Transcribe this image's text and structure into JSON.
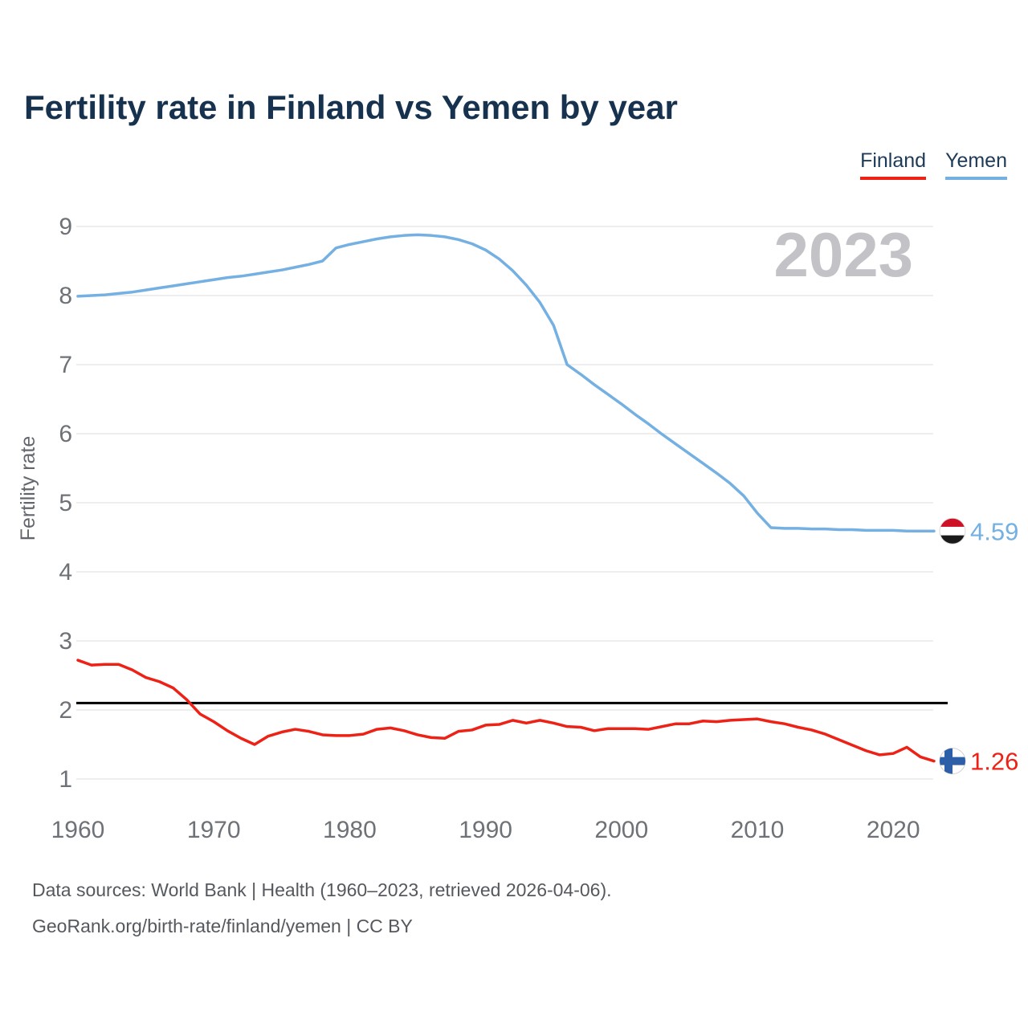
{
  "title": "Fertility rate in Finland vs Yemen by year",
  "watermark": "2023",
  "legend": [
    {
      "label": "Finland",
      "color": "#ed2115"
    },
    {
      "label": "Yemen",
      "color": "#74b0e2"
    }
  ],
  "y_axis": {
    "label": "Fertility rate",
    "ticks": [
      1,
      2,
      3,
      4,
      5,
      6,
      7,
      8,
      9
    ]
  },
  "x_axis": {
    "ticks": [
      1960,
      1970,
      1980,
      1990,
      2000,
      2010,
      2020
    ]
  },
  "chart_data": {
    "type": "line",
    "x": [
      1960,
      1961,
      1962,
      1963,
      1964,
      1965,
      1966,
      1967,
      1968,
      1969,
      1970,
      1971,
      1972,
      1973,
      1974,
      1975,
      1976,
      1977,
      1978,
      1979,
      1980,
      1981,
      1982,
      1983,
      1984,
      1985,
      1986,
      1987,
      1988,
      1989,
      1990,
      1991,
      1992,
      1993,
      1994,
      1995,
      1996,
      1997,
      1998,
      1999,
      2000,
      2001,
      2002,
      2003,
      2004,
      2005,
      2006,
      2007,
      2008,
      2009,
      2010,
      2011,
      2012,
      2013,
      2014,
      2015,
      2016,
      2017,
      2018,
      2019,
      2020,
      2021,
      2022,
      2023
    ],
    "series": [
      {
        "name": "Yemen",
        "color": "#74b0e2",
        "end_label": "4.59",
        "flag": "yemen",
        "values": [
          7.99,
          8.0,
          8.01,
          8.03,
          8.05,
          8.08,
          8.11,
          8.14,
          8.17,
          8.2,
          8.23,
          8.26,
          8.28,
          8.31,
          8.34,
          8.37,
          8.41,
          8.45,
          8.5,
          8.69,
          8.74,
          8.78,
          8.82,
          8.85,
          8.87,
          8.88,
          8.87,
          8.85,
          8.81,
          8.75,
          8.66,
          8.53,
          8.36,
          8.15,
          7.9,
          7.57,
          7.0,
          6.86,
          6.71,
          6.57,
          6.43,
          6.28,
          6.14,
          5.99,
          5.85,
          5.71,
          5.57,
          5.43,
          5.28,
          5.1,
          4.85,
          4.64,
          4.63,
          4.63,
          4.62,
          4.62,
          4.61,
          4.61,
          4.6,
          4.6,
          4.6,
          4.59,
          4.59,
          4.59
        ]
      },
      {
        "name": "Finland",
        "color": "#ed2115",
        "end_label": "1.26",
        "flag": "finland",
        "values": [
          2.72,
          2.65,
          2.66,
          2.66,
          2.58,
          2.47,
          2.41,
          2.32,
          2.15,
          1.94,
          1.83,
          1.7,
          1.59,
          1.5,
          1.62,
          1.68,
          1.72,
          1.69,
          1.64,
          1.63,
          1.63,
          1.65,
          1.72,
          1.74,
          1.7,
          1.64,
          1.6,
          1.59,
          1.69,
          1.71,
          1.78,
          1.79,
          1.85,
          1.81,
          1.85,
          1.81,
          1.76,
          1.75,
          1.7,
          1.73,
          1.73,
          1.73,
          1.72,
          1.76,
          1.8,
          1.8,
          1.84,
          1.83,
          1.85,
          1.86,
          1.87,
          1.83,
          1.8,
          1.75,
          1.71,
          1.65,
          1.57,
          1.49,
          1.41,
          1.35,
          1.37,
          1.46,
          1.32,
          1.26
        ]
      }
    ],
    "reference_line": {
      "value": 2.1,
      "color": "#000000"
    },
    "title": "Fertility rate in Finland vs Yemen by year",
    "xlabel": "",
    "ylabel": "Fertility rate",
    "ylim": [
      1,
      9
    ],
    "xlim": [
      1960,
      2023
    ],
    "grid": "horizontal",
    "legend_position": "top-right"
  },
  "colors": {
    "title": "#17324e",
    "axis_text": "#6e7277",
    "gridline": "#e8e8ea",
    "watermark": "#c3c3c7",
    "footer_text": "#55595e",
    "finland_flag_cross": "#2c5fa8",
    "yemen_flag_red": "#ce1126",
    "yemen_flag_black": "#1a1a1a"
  },
  "footer": {
    "line1": "Data sources: World Bank | Health (1960–2023, retrieved 2026-04-06).",
    "line2": "GeoRank.org/birth-rate/finland/yemen | CC BY"
  }
}
